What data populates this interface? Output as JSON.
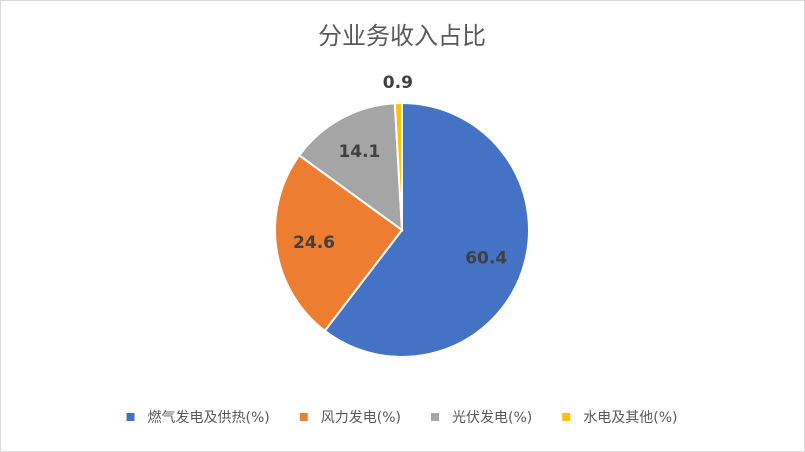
{
  "chart_data": {
    "type": "pie",
    "title": "分业务收入占比",
    "categories": [
      "燃气发电及供热(%)",
      "风力发电(%)",
      "光伏发电(%)",
      "水电及其他(%)"
    ],
    "values": [
      60.4,
      24.6,
      14.1,
      0.9
    ],
    "colors": [
      "#4472c4",
      "#ed7d31",
      "#a5a5a5",
      "#ffc000"
    ],
    "legend": "bottom"
  }
}
